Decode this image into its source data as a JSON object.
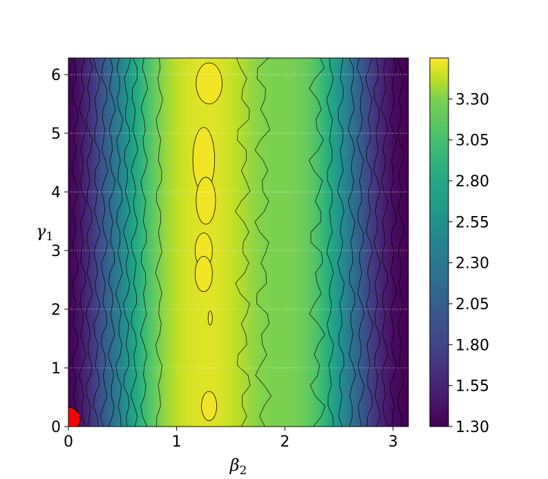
{
  "chart_data": {
    "type": "heatmap",
    "subtype": "filled-contour",
    "xlabel": "β",
    "xlabel_sub": "2",
    "ylabel": "γ",
    "ylabel_sub": "1",
    "xlim": [
      0,
      3.14159
    ],
    "ylim": [
      0,
      6.28318
    ],
    "x_ticks": [
      0,
      1,
      2,
      3
    ],
    "y_ticks": [
      0,
      1,
      2,
      3,
      4,
      5,
      6
    ],
    "colorbar": {
      "min": 1.3,
      "max": 3.55,
      "ticks": [
        "1.30",
        "1.55",
        "1.80",
        "2.05",
        "2.30",
        "2.55",
        "2.80",
        "3.05",
        "3.30"
      ],
      "colormap": "viridis"
    },
    "grid": "dotted white lines at y ticks",
    "profile_along_x": {
      "x": [
        0,
        0.1,
        0.2,
        0.3,
        0.4,
        0.5,
        0.6,
        0.7,
        0.8,
        0.9,
        1.0,
        1.1,
        1.2,
        1.3,
        1.4,
        1.5,
        1.6,
        1.7,
        1.8,
        1.9,
        2.0,
        2.1,
        2.2,
        2.3,
        2.4,
        2.5,
        2.6,
        2.7,
        2.8,
        2.9,
        3.0,
        3.14159
      ],
      "values": [
        1.3,
        1.42,
        1.6,
        1.85,
        2.1,
        2.35,
        2.6,
        2.82,
        3.02,
        3.2,
        3.33,
        3.4,
        3.44,
        3.45,
        3.42,
        3.36,
        3.28,
        3.18,
        3.12,
        3.1,
        3.1,
        3.08,
        3.02,
        2.9,
        2.7,
        2.48,
        2.2,
        1.95,
        1.7,
        1.52,
        1.38,
        1.3
      ]
    },
    "marker": {
      "x": 0,
      "y": 0.13,
      "color": "#ff0000"
    }
  }
}
